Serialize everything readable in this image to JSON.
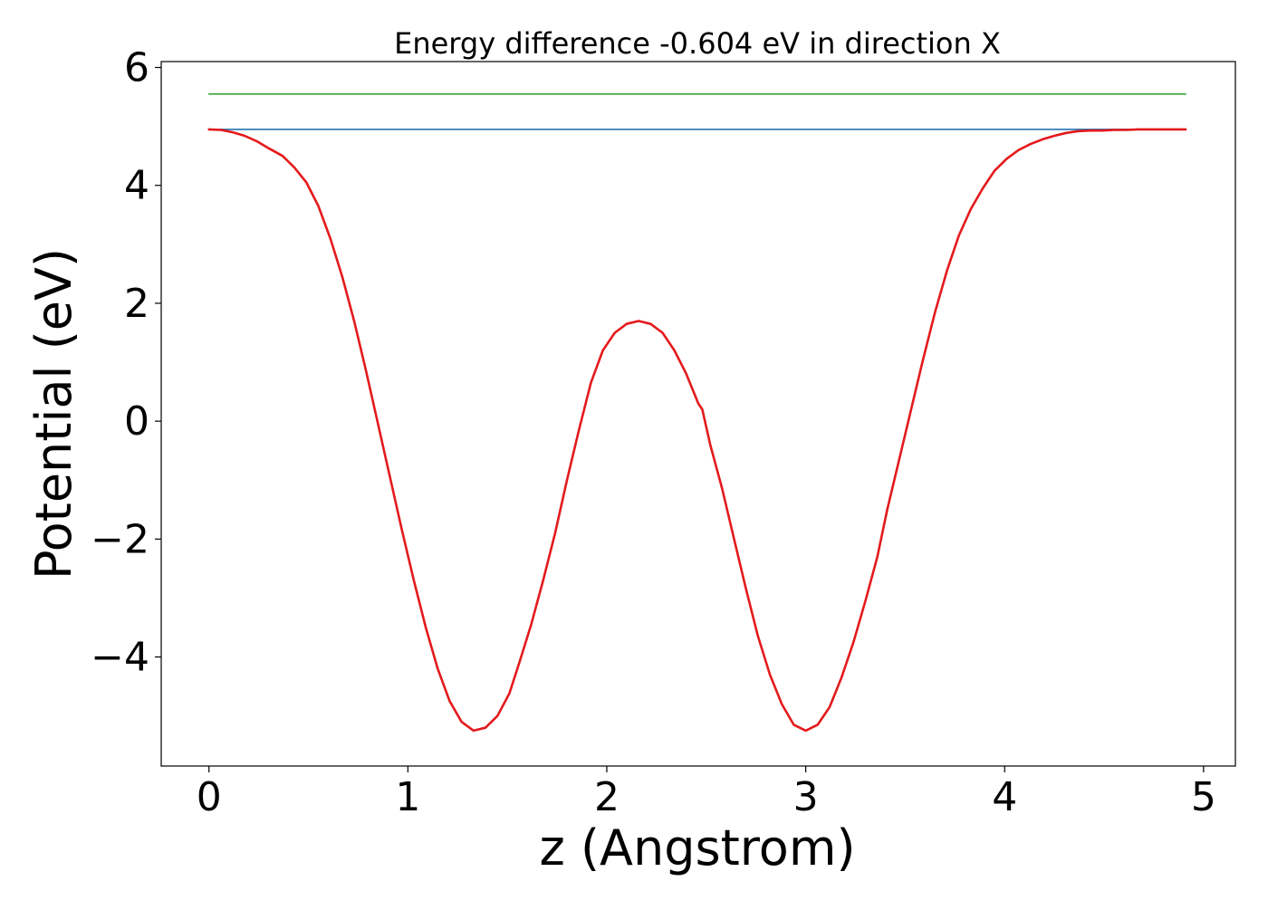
{
  "chart_data": {
    "type": "line",
    "title": "Energy difference -0.604 eV in direction X",
    "xlabel": "z (Angstrom)",
    "ylabel": "Potential (eV)",
    "xlim": [
      -0.24,
      5.16
    ],
    "ylim": [
      -5.85,
      6.1
    ],
    "xticks": [
      0,
      1,
      2,
      3,
      4,
      5
    ],
    "yticks": [
      -4,
      -2,
      0,
      2,
      4,
      6
    ],
    "xtick_labels": [
      "0",
      "1",
      "2",
      "3",
      "4",
      "5"
    ],
    "ytick_labels": [
      "−4",
      "−2",
      "0",
      "2",
      "4",
      "6"
    ],
    "grid": false,
    "legend": "none",
    "series": [
      {
        "color": "#e41a1c",
        "x": [
          0,
          0.06,
          0.12,
          0.18,
          0.24,
          0.3,
          0.37,
          0.43,
          0.49,
          0.55,
          0.61,
          0.67,
          0.73,
          0.79,
          0.85,
          0.91,
          0.97,
          1.03,
          1.09,
          1.15,
          1.21,
          1.27,
          1.33,
          1.39,
          1.45,
          1.51,
          1.56,
          1.62,
          1.68,
          1.74,
          1.8,
          1.86,
          1.92,
          1.98,
          2.04,
          2.1,
          2.16,
          2.22,
          2.28,
          2.34,
          2.4,
          2.46,
          2.48,
          2.52,
          2.58,
          2.64,
          2.7,
          2.76,
          2.82,
          2.88,
          2.94,
          3.0,
          3.06,
          3.12,
          3.18,
          3.24,
          3.3,
          3.36,
          3.41,
          3.47,
          3.53,
          3.59,
          3.65,
          3.71,
          3.77,
          3.83,
          3.89,
          3.95,
          4.01,
          4.07,
          4.13,
          4.19,
          4.25,
          4.31,
          4.37,
          4.43,
          4.49,
          4.55,
          4.61,
          4.67,
          4.73,
          4.79,
          4.85,
          4.91
        ],
        "y": [
          4.95,
          4.94,
          4.9,
          4.84,
          4.75,
          4.63,
          4.5,
          4.3,
          4.05,
          3.65,
          3.1,
          2.45,
          1.7,
          0.85,
          -0.05,
          -0.95,
          -1.85,
          -2.7,
          -3.5,
          -4.2,
          -4.75,
          -5.1,
          -5.25,
          -5.2,
          -5.0,
          -4.62,
          -4.1,
          -3.45,
          -2.7,
          -1.9,
          -1.0,
          -0.15,
          0.65,
          1.2,
          1.5,
          1.65,
          1.7,
          1.65,
          1.5,
          1.2,
          0.8,
          0.3,
          0.2,
          -0.4,
          -1.15,
          -2.0,
          -2.85,
          -3.65,
          -4.3,
          -4.8,
          -5.15,
          -5.25,
          -5.15,
          -4.85,
          -4.35,
          -3.75,
          -3.05,
          -2.3,
          -1.5,
          -0.65,
          0.2,
          1.05,
          1.85,
          2.55,
          3.15,
          3.6,
          3.95,
          4.25,
          4.45,
          4.6,
          4.7,
          4.78,
          4.84,
          4.89,
          4.92,
          4.93,
          4.93,
          4.94,
          4.94,
          4.95,
          4.95,
          4.95,
          4.95,
          4.95
        ]
      },
      {
        "color": "#377eb8",
        "x": [
          0,
          4.91
        ],
        "y": [
          4.95,
          4.95
        ]
      },
      {
        "color": "#4daf4a",
        "x": [
          0,
          4.91
        ],
        "y": [
          5.55,
          5.55
        ]
      }
    ]
  }
}
